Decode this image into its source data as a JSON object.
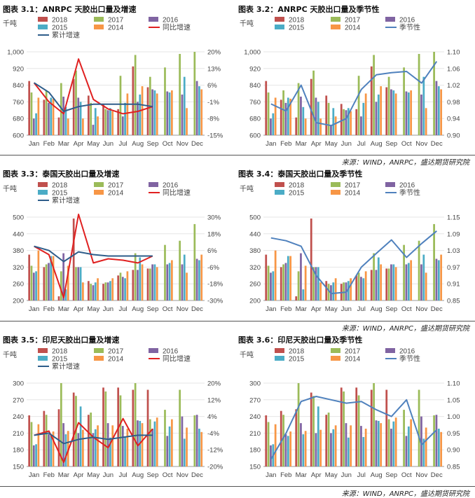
{
  "months": [
    "Jan",
    "Feb",
    "Mar",
    "Apr",
    "May",
    "Jun",
    "Jul",
    "Aug",
    "Sep",
    "Oct",
    "Nov",
    "Dec"
  ],
  "colors": {
    "2018": "#c0504d",
    "2017": "#9bbb59",
    "2016": "#8064a2",
    "2015": "#4bacc6",
    "2014": "#f79646",
    "yoy": "#e02020",
    "cum": "#2e5d8a",
    "season": "#4f81bd"
  },
  "sources": [
    "来源：WIND，ANRPC，盛达期货研究院",
    "来源：WIND，ANRPC，盛达期货研究院",
    "来源：WIND，ANRPC，盛达期货研究院"
  ],
  "chart_data": [
    {
      "type": "bar",
      "title": "图表 3.1：ANRPC 天胶出口量及增速",
      "ylabel": "千吨",
      "legend": [
        "2018",
        "2017",
        "2016",
        "2015",
        "2014",
        "同比增速",
        "累计增速"
      ],
      "categories": [
        "Jan",
        "Feb",
        "Mar",
        "Apr",
        "May",
        "Jun",
        "Jul",
        "Aug",
        "Sep",
        "Oct",
        "Nov",
        "Dec"
      ],
      "ylim": [
        600,
        1000
      ],
      "yticks": [
        "600",
        "680",
        "760",
        "840",
        "920",
        "1,000"
      ],
      "y2lim": [
        -15,
        20
      ],
      "y2ticks": [
        "-15%",
        "-8%",
        "-1%",
        "6%",
        "13%",
        "20%"
      ],
      "series": [
        {
          "name": "2018",
          "values": [
            860,
            770,
            685,
            870,
            790,
            750,
            725,
            930,
            830,
            null,
            null,
            null
          ]
        },
        {
          "name": "2017",
          "values": [
            805,
            815,
            850,
            910,
            755,
            725,
            885,
            985,
            880,
            925,
            990,
            1000
          ]
        },
        {
          "name": "2016",
          "values": [
            680,
            755,
            785,
            780,
            650,
            720,
            690,
            760,
            820,
            810,
            795,
            860
          ]
        },
        {
          "name": "2015",
          "values": [
            705,
            780,
            735,
            760,
            730,
            730,
            755,
            795,
            815,
            805,
            880,
            835
          ]
        },
        {
          "name": "2014",
          "values": [
            780,
            775,
            680,
            680,
            690,
            715,
            800,
            835,
            800,
            815,
            730,
            820
          ]
        }
      ],
      "lines": [
        {
          "name": "同比增速",
          "axis": "y2",
          "values": [
            7,
            -1,
            -6,
            17,
            0,
            -4,
            -6,
            -5,
            -3,
            null,
            null,
            null
          ]
        },
        {
          "name": "累计增速",
          "axis": "y2",
          "values": [
            7,
            3,
            -5,
            -3,
            -2,
            -2,
            -2,
            -2,
            -3,
            null,
            null,
            null
          ]
        }
      ]
    },
    {
      "type": "bar",
      "title": "图表 3.2：ANRPC 天胶出口量及季节性",
      "ylabel": "千吨",
      "legend": [
        "2018",
        "2017",
        "2016",
        "2015",
        "2014",
        "季节性"
      ],
      "categories": [
        "Jan",
        "Feb",
        "Mar",
        "Apr",
        "May",
        "Jun",
        "Jul",
        "Aug",
        "Sep",
        "Oct",
        "Nov",
        "Dec"
      ],
      "ylim": [
        600,
        1000
      ],
      "yticks": [
        "600",
        "680",
        "760",
        "840",
        "920",
        "1,000"
      ],
      "y2lim": [
        0.9,
        1.1
      ],
      "y2ticks": [
        "0.90",
        "0.94",
        "0.98",
        "1.02",
        "1.06",
        "1.10"
      ],
      "series": [
        {
          "name": "2018",
          "values": [
            860,
            770,
            685,
            870,
            790,
            750,
            725,
            930,
            830,
            null,
            null,
            null
          ]
        },
        {
          "name": "2017",
          "values": [
            805,
            815,
            850,
            910,
            755,
            725,
            885,
            985,
            880,
            925,
            990,
            1000
          ]
        },
        {
          "name": "2016",
          "values": [
            680,
            755,
            785,
            780,
            650,
            720,
            690,
            760,
            820,
            810,
            795,
            860
          ]
        },
        {
          "name": "2015",
          "values": [
            705,
            780,
            735,
            760,
            730,
            730,
            755,
            795,
            815,
            805,
            880,
            835
          ]
        },
        {
          "name": "2014",
          "values": [
            780,
            775,
            680,
            680,
            690,
            715,
            800,
            835,
            800,
            815,
            730,
            820
          ]
        }
      ],
      "lines": [
        {
          "name": "季节性",
          "axis": "y2",
          "values": [
            0.975,
            0.958,
            1.02,
            0.93,
            0.923,
            0.94,
            1.01,
            1.045,
            1.05,
            1.053,
            1.025,
            1.077
          ]
        }
      ]
    },
    {
      "type": "bar",
      "title": "图表 3.3：泰国天胶出口量及增速",
      "ylabel": "千吨",
      "legend": [
        "2018",
        "2017",
        "2016",
        "2015",
        "2014",
        "同比增速",
        "累计增速"
      ],
      "categories": [
        "Jan",
        "Feb",
        "Mar",
        "Apr",
        "May",
        "Jun",
        "Jul",
        "Aug",
        "Sep",
        "Oct",
        "Nov",
        "Dec"
      ],
      "ylim": [
        200,
        500
      ],
      "yticks": [
        "200",
        "260",
        "320",
        "380",
        "440",
        "500"
      ],
      "y2lim": [
        -30,
        30
      ],
      "y2ticks": [
        "-30%",
        "-18%",
        "-6%",
        "6%",
        "18%",
        "30%"
      ],
      "series": [
        {
          "name": "2018",
          "values": [
            365,
            320,
            215,
            495,
            270,
            260,
            290,
            310,
            315,
            null,
            null,
            null
          ]
        },
        {
          "name": "2017",
          "values": [
            325,
            330,
            305,
            320,
            260,
            265,
            300,
            370,
            315,
            400,
            415,
            475
          ]
        },
        {
          "name": "2016",
          "values": [
            300,
            335,
            370,
            320,
            255,
            265,
            285,
            310,
            330,
            330,
            330,
            350
          ]
        },
        {
          "name": "2015",
          "values": [
            305,
            360,
            240,
            320,
            265,
            270,
            280,
            355,
            330,
            335,
            365,
            345
          ]
        },
        {
          "name": "2014",
          "values": [
            380,
            360,
            325,
            265,
            280,
            280,
            305,
            330,
            320,
            345,
            300,
            365
          ]
        }
      ],
      "lines": [
        {
          "name": "同比增速",
          "axis": "y2",
          "values": [
            9,
            3,
            -28,
            32,
            -3,
            0,
            -1,
            -3,
            2,
            null,
            null,
            null
          ]
        },
        {
          "name": "累计增速",
          "axis": "y2",
          "values": [
            9,
            6,
            -2,
            5,
            3,
            2,
            2,
            2,
            2,
            null,
            null,
            null
          ]
        }
      ]
    },
    {
      "type": "bar",
      "title": "图表 3.4：泰国天胶出口量及季节性",
      "ylabel": "千吨",
      "legend": [
        "2018",
        "2017",
        "2016",
        "2015",
        "2014",
        "季节性"
      ],
      "categories": [
        "Jan",
        "Feb",
        "Mar",
        "Apr",
        "May",
        "Jun",
        "Jul",
        "Aug",
        "Sep",
        "Oct",
        "Nov",
        "Dec"
      ],
      "ylim": [
        200,
        500
      ],
      "yticks": [
        "200",
        "260",
        "320",
        "380",
        "440",
        "500"
      ],
      "y2lim": [
        0.85,
        1.15
      ],
      "y2ticks": [
        "0.85",
        "0.91",
        "0.97",
        "1.03",
        "1.09",
        "1.15"
      ],
      "series": [
        {
          "name": "2018",
          "values": [
            365,
            320,
            215,
            495,
            270,
            260,
            290,
            310,
            315,
            null,
            null,
            null
          ]
        },
        {
          "name": "2017",
          "values": [
            325,
            330,
            305,
            320,
            260,
            265,
            300,
            370,
            315,
            400,
            415,
            475
          ]
        },
        {
          "name": "2016",
          "values": [
            300,
            335,
            370,
            320,
            255,
            265,
            285,
            310,
            330,
            330,
            330,
            350
          ]
        },
        {
          "name": "2015",
          "values": [
            305,
            360,
            240,
            320,
            265,
            270,
            280,
            355,
            330,
            335,
            365,
            345
          ]
        },
        {
          "name": "2014",
          "values": [
            380,
            360,
            325,
            265,
            280,
            280,
            305,
            330,
            320,
            345,
            300,
            365
          ]
        }
      ],
      "lines": [
        {
          "name": "季节性",
          "axis": "y2",
          "values": [
            1.075,
            1.065,
            1.045,
            0.94,
            0.875,
            0.88,
            0.97,
            1.02,
            1.068,
            1.005,
            1.055,
            1.1
          ]
        }
      ]
    },
    {
      "type": "bar",
      "title": "图表 3.5：印尼天胶出口量及增速",
      "ylabel": "千吨",
      "legend": [
        "2018",
        "2017",
        "2016",
        "2015",
        "2014",
        "同比增速",
        "累计增速"
      ],
      "categories": [
        "Jan",
        "Feb",
        "Mar",
        "Apr",
        "May",
        "Jun",
        "Jul",
        "Aug",
        "Sep",
        "Oct",
        "Nov",
        "Dec"
      ],
      "ylim": [
        150,
        300
      ],
      "yticks": [
        "150",
        "180",
        "210",
        "240",
        "270",
        "300"
      ],
      "y2lim": [
        -20,
        20
      ],
      "y2ticks": [
        "-20%",
        "-12%",
        "-4%",
        "4%",
        "12%",
        "20%"
      ],
      "series": [
        {
          "name": "2018",
          "values": [
            242,
            250,
            253,
            283,
            243,
            292,
            292,
            288,
            288,
            null,
            null,
            null
          ]
        },
        {
          "name": "2017",
          "values": [
            230,
            243,
            300,
            277,
            247,
            285,
            278,
            300,
            235,
            252,
            288,
            242
          ]
        },
        {
          "name": "2016",
          "values": [
            188,
            208,
            228,
            210,
            210,
            228,
            223,
            233,
            218,
            205,
            240,
            243
          ]
        },
        {
          "name": "2015",
          "values": [
            190,
            205,
            208,
            258,
            217,
            202,
            203,
            232,
            231,
            222,
            200,
            218
          ]
        },
        {
          "name": "2014",
          "values": [
            226,
            213,
            214,
            216,
            224,
            224,
            218,
            228,
            238,
            235,
            220,
            212
          ]
        }
      ],
      "lines": [
        {
          "name": "同比增速",
          "axis": "y2",
          "values": [
            -5,
            -3,
            -18,
            1,
            -6,
            -11,
            3,
            -10,
            -2,
            null,
            null,
            null
          ]
        },
        {
          "name": "累计增速",
          "axis": "y2",
          "values": [
            -5,
            -4,
            -9,
            -7,
            -6,
            -7,
            -6,
            -5,
            -5,
            null,
            null,
            null
          ]
        }
      ]
    },
    {
      "type": "bar",
      "title": "图表 3.6：印尼天胶出口量及季节性",
      "ylabel": "千吨",
      "legend": [
        "2018",
        "2017",
        "2016",
        "2015",
        "2014",
        "季节性"
      ],
      "categories": [
        "Jan",
        "Feb",
        "Mar",
        "Apr",
        "May",
        "Jun",
        "Jul",
        "Aug",
        "Sep",
        "Oct",
        "Nov",
        "Dec"
      ],
      "ylim": [
        150,
        300
      ],
      "yticks": [
        "150",
        "180",
        "210",
        "240",
        "270",
        "300"
      ],
      "y2lim": [
        0.85,
        1.1
      ],
      "y2ticks": [
        "0.85",
        "0.90",
        "0.95",
        "1.00",
        "1.05",
        "1.10"
      ],
      "series": [
        {
          "name": "2018",
          "values": [
            242,
            250,
            253,
            283,
            243,
            292,
            292,
            288,
            288,
            null,
            null,
            null
          ]
        },
        {
          "name": "2017",
          "values": [
            230,
            243,
            300,
            277,
            247,
            285,
            278,
            300,
            235,
            252,
            288,
            242
          ]
        },
        {
          "name": "2016",
          "values": [
            188,
            208,
            228,
            210,
            210,
            228,
            223,
            233,
            218,
            205,
            240,
            243
          ]
        },
        {
          "name": "2015",
          "values": [
            190,
            205,
            208,
            258,
            217,
            202,
            203,
            232,
            231,
            222,
            200,
            218
          ]
        },
        {
          "name": "2014",
          "values": [
            226,
            213,
            214,
            216,
            224,
            224,
            218,
            228,
            238,
            235,
            220,
            212
          ]
        }
      ],
      "lines": [
        {
          "name": "季节性",
          "axis": "y2",
          "values": [
            0.872,
            0.95,
            1.045,
            1.06,
            1.05,
            1.04,
            1.045,
            1.02,
            1.0,
            1.05,
            0.915,
            0.96
          ]
        }
      ]
    }
  ]
}
